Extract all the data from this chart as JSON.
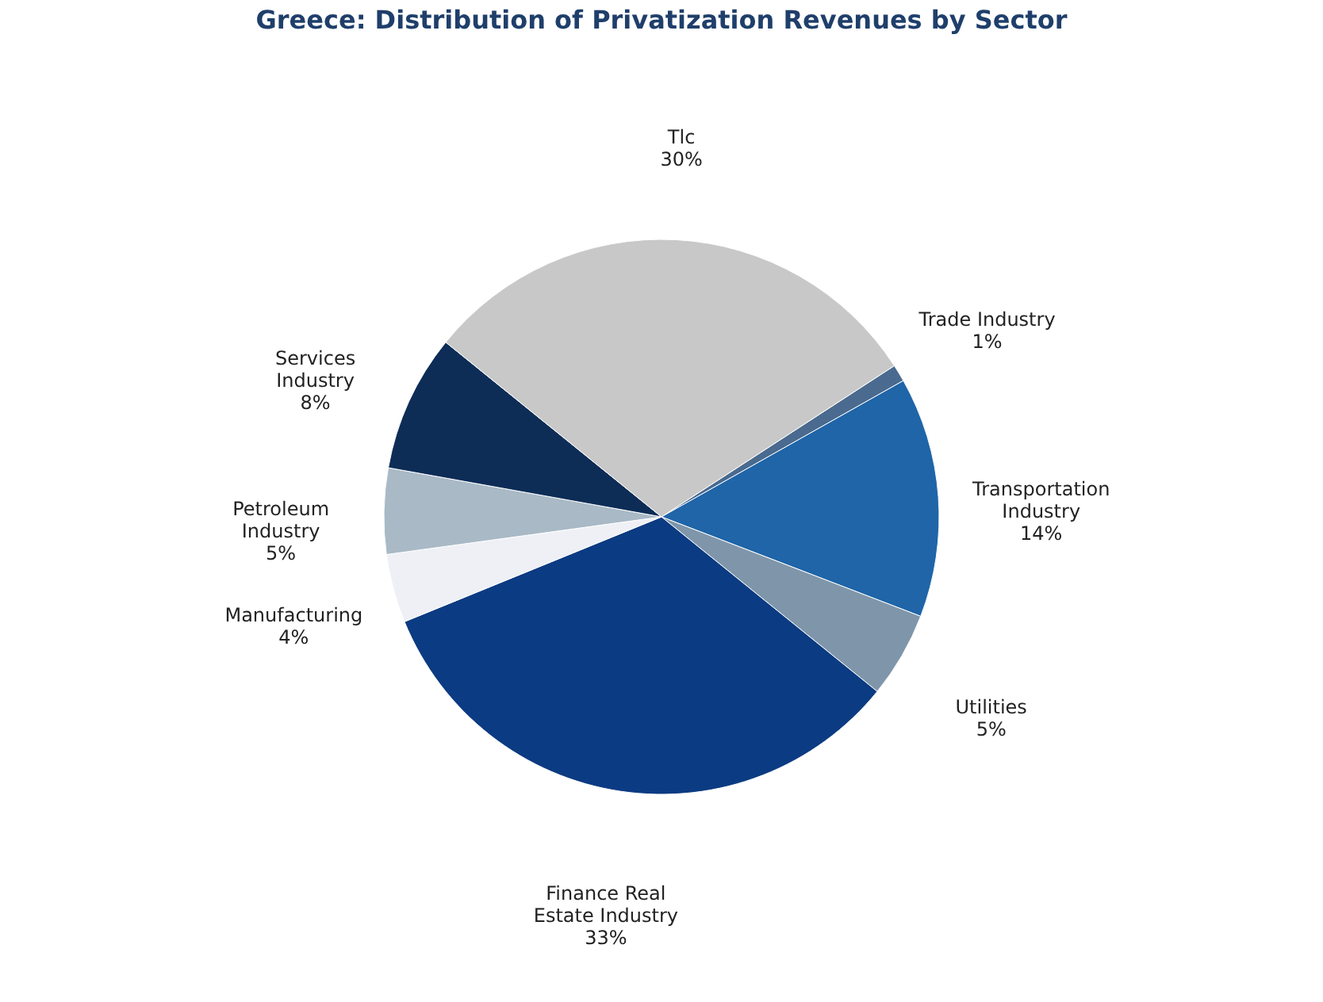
{
  "chart_data": {
    "type": "pie",
    "title": "Greece: Distribution of Privatization Revenues by Sector",
    "categories": [
      "Trade Industry",
      "Transportation Industry",
      "Utilities",
      "Finance Real Estate Industry",
      "Manufacturing",
      "Petroleum Industry",
      "Services Industry",
      "Tlc"
    ],
    "values": [
      1,
      14,
      5,
      33,
      4,
      5,
      8,
      30
    ],
    "colors": [
      "#4a6a8f",
      "#1f65a8",
      "#7f96aa",
      "#0b3b82",
      "#eef0f5",
      "#a9b9c6",
      "#0d2d57",
      "#c8c8c8"
    ],
    "value_labels": [
      "1%",
      "14%",
      "5%",
      "33%",
      "4%",
      "5%",
      "8%",
      "30%"
    ],
    "legend": false
  }
}
